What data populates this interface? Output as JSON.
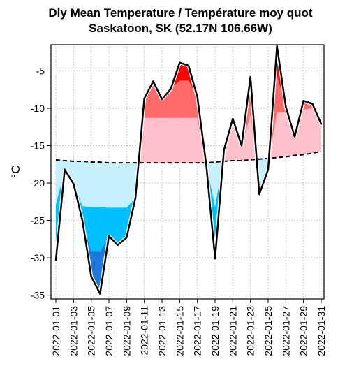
{
  "title_line1": "Dly Mean Temperature / Température moy quot",
  "title_line2": "Saskatoon, SK (52.17N 106.66W)",
  "chart_data": {
    "type": "area",
    "ylabel": "°C",
    "ylim": [
      -35.5,
      -1.5
    ],
    "y_ticks": [
      -5,
      -10,
      -15,
      -20,
      -25,
      -30,
      -35
    ],
    "grid": true,
    "x": [
      "2022-01-01",
      "2022-01-02",
      "2022-01-03",
      "2022-01-04",
      "2022-01-05",
      "2022-01-06",
      "2022-01-07",
      "2022-01-08",
      "2022-01-09",
      "2022-01-10",
      "2022-01-11",
      "2022-01-12",
      "2022-01-13",
      "2022-01-14",
      "2022-01-15",
      "2022-01-16",
      "2022-01-17",
      "2022-01-18",
      "2022-01-19",
      "2022-01-20",
      "2022-01-21",
      "2022-01-22",
      "2022-01-23",
      "2022-01-24",
      "2022-01-25",
      "2022-01-26",
      "2022-01-27",
      "2022-01-28",
      "2022-01-29",
      "2022-01-30",
      "2022-01-31"
    ],
    "x_tick_labels": [
      "2022-01-01",
      "2022-01-03",
      "2022-01-05",
      "2022-01-07",
      "2022-01-09",
      "2022-01-11",
      "2022-01-13",
      "2022-01-15",
      "2022-01-17",
      "2022-01-19",
      "2022-01-21",
      "2022-01-23",
      "2022-01-25",
      "2022-01-27",
      "2022-01-29",
      "2022-01-31"
    ],
    "series": [
      {
        "values": [
          -30.3,
          -18.2,
          -20.1,
          -25.0,
          -32.5,
          -34.8,
          -27.1,
          -28.3,
          -27.3,
          -22.0,
          -8.7,
          -6.4,
          -8.8,
          -7.4,
          -3.9,
          -4.3,
          -8.5,
          -17.5,
          -30.1,
          -15.6,
          -11.4,
          -15.0,
          -5.8,
          -21.5,
          -18.2,
          -1.7,
          -9.8,
          -13.8,
          -9.0,
          -9.4,
          -12.1
        ],
        "style": "solid",
        "color": "#000000"
      },
      {
        "values": [
          -16.9,
          -17.0,
          -17.1,
          -17.1,
          -17.2,
          -17.2,
          -17.3,
          -17.3,
          -17.3,
          -17.3,
          -17.3,
          -17.3,
          -17.3,
          -17.3,
          -17.3,
          -17.3,
          -17.3,
          -17.3,
          -17.2,
          -17.1,
          -17.0,
          -17.0,
          -16.9,
          -16.8,
          -16.7,
          -16.6,
          -16.5,
          -16.3,
          -16.2,
          -16.0,
          -15.8
        ],
        "style": "dashed",
        "color": "#000000"
      }
    ],
    "band_colors": {
      "below_light": "#c6efff",
      "below_mid": "#00bfff",
      "below_dark": "#1e78dc",
      "above_light": "#ffc0cb",
      "above_mid": "#ff6b6b",
      "above_dark": "#ff0000"
    }
  }
}
